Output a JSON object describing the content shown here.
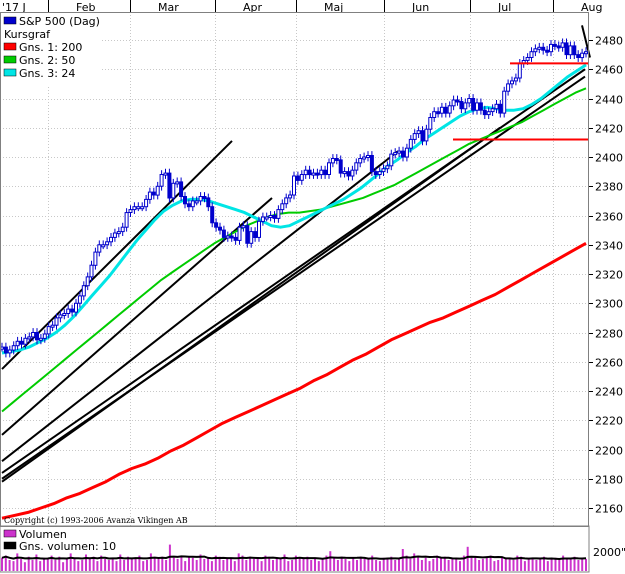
{
  "chart_data": {
    "type": "line",
    "year_label": "'17 J",
    "months": [
      "Feb",
      "Mar",
      "Apr",
      "Maj",
      "Jun",
      "Jul",
      "Aug"
    ],
    "y_ticks": [
      2160,
      2180,
      2200,
      2220,
      2240,
      2260,
      2280,
      2300,
      2320,
      2340,
      2360,
      2380,
      2400,
      2420,
      2440,
      2460,
      2480
    ],
    "ylim": [
      2150,
      2495
    ],
    "grid": true,
    "copyright": "Copyright (c) 1993-2006 Avanza Vikingen AB",
    "legend": [
      {
        "label": "S&P 500 (Dag)",
        "color": "#0000cc"
      },
      {
        "label": "Kursgraf",
        "color": null
      },
      {
        "label": "Gns. 1: 200",
        "color": "#ff0000"
      },
      {
        "label": "Gns. 2: 50",
        "color": "#00cc00"
      },
      {
        "label": "Gns. 3: 24",
        "color": "#00e5e5"
      }
    ],
    "price_close": [
      2270,
      2266,
      2268,
      2271,
      2274,
      2272,
      2276,
      2277,
      2280,
      2275,
      2276,
      2279,
      2284,
      2285,
      2290,
      2292,
      2293,
      2296,
      2294,
      2300,
      2305,
      2312,
      2318,
      2326,
      2335,
      2340,
      2340,
      2342,
      2345,
      2348,
      2349,
      2352,
      2362,
      2364,
      2366,
      2366,
      2366,
      2371,
      2376,
      2374,
      2380,
      2388,
      2389,
      2372,
      2382,
      2383,
      2373,
      2368,
      2366,
      2370,
      2370,
      2373,
      2372,
      2366,
      2355,
      2352,
      2350,
      2345,
      2346,
      2345,
      2343,
      2352,
      2353,
      2341,
      2349,
      2345,
      2356,
      2359,
      2359,
      2360,
      2358,
      2364,
      2368,
      2372,
      2374,
      2387,
      2384,
      2388,
      2391,
      2388,
      2389,
      2388,
      2391,
      2388,
      2396,
      2399,
      2398,
      2389,
      2390,
      2387,
      2391,
      2396,
      2399,
      2400,
      2401,
      2390,
      2388,
      2390,
      2392,
      2394,
      2402,
      2403,
      2404,
      2400,
      2406,
      2412,
      2416,
      2418,
      2411,
      2419,
      2427,
      2431,
      2430,
      2434,
      2430,
      2435,
      2439,
      2438,
      2433,
      2437,
      2440,
      2432,
      2437,
      2432,
      2429,
      2431,
      2433,
      2436,
      2430,
      2445,
      2450,
      2452,
      2454,
      2464,
      2466,
      2468,
      2472,
      2474,
      2475,
      2473,
      2472,
      2477,
      2476,
      2475,
      2478,
      2470,
      2476,
      2470,
      2468,
      2471,
      2472
    ],
    "ma200": [
      2153,
      2155,
      2157,
      2160,
      2163,
      2167,
      2170,
      2174,
      2178,
      2183,
      2187,
      2190,
      2194,
      2199,
      2203,
      2208,
      2213,
      2218,
      2222,
      2226,
      2230,
      2234,
      2238,
      2242,
      2247,
      2251,
      2256,
      2261,
      2265,
      2270,
      2275,
      2279,
      2283,
      2287,
      2290,
      2294,
      2298,
      2302,
      2306,
      2311,
      2316,
      2321,
      2326,
      2331,
      2336,
      2341
    ],
    "ma50": [
      2226,
      2232,
      2238,
      2244,
      2250,
      2256,
      2262,
      2268,
      2274,
      2280,
      2286,
      2292,
      2298,
      2304,
      2310,
      2316,
      2321,
      2326,
      2331,
      2336,
      2341,
      2345,
      2349,
      2353,
      2356,
      2359,
      2361,
      2362,
      2362,
      2363,
      2364,
      2366,
      2368,
      2370,
      2372,
      2375,
      2378,
      2381,
      2385,
      2389,
      2393,
      2397,
      2401,
      2405,
      2409,
      2412,
      2415,
      2418,
      2421,
      2424,
      2428,
      2432,
      2436,
      2440,
      2444,
      2447
    ],
    "ma24": [
      2266,
      2267,
      2268,
      2270,
      2273,
      2276,
      2280,
      2285,
      2291,
      2298,
      2305,
      2312,
      2319,
      2327,
      2335,
      2343,
      2350,
      2357,
      2363,
      2367,
      2370,
      2371,
      2371,
      2370,
      2368,
      2366,
      2364,
      2362,
      2359,
      2356,
      2353,
      2352,
      2353,
      2356,
      2359,
      2362,
      2365,
      2368,
      2371,
      2375,
      2379,
      2384,
      2389,
      2394,
      2398,
      2403,
      2407,
      2412,
      2416,
      2420,
      2424,
      2428,
      2431,
      2433,
      2434,
      2433,
      2432,
      2432,
      2433,
      2436,
      2440,
      2445,
      2450,
      2455,
      2459,
      2463
    ],
    "resistance_line": {
      "value": 2464,
      "color": "#ff0000"
    },
    "support_line": {
      "value": 2412,
      "color": "#ff0000"
    },
    "volume_legend": [
      {
        "label": "Volumen",
        "color": "#cc33cc"
      },
      {
        "label": "Gns. volumen: 10",
        "color": "#000000"
      }
    ],
    "volume_tick": "2000\"",
    "volume": [
      12,
      14,
      10,
      9,
      16,
      11,
      8,
      13,
      10,
      15,
      9,
      12,
      11,
      14,
      10,
      13,
      8,
      12,
      16,
      11,
      9,
      10,
      15,
      12,
      13,
      9,
      14,
      11,
      10,
      12,
      9,
      15,
      10,
      13,
      12,
      11,
      14,
      9,
      10,
      16,
      12,
      11,
      13,
      10,
      24,
      12,
      11,
      14,
      9,
      13,
      12,
      10,
      15,
      11,
      12,
      9,
      14,
      13,
      10,
      11,
      12,
      9,
      16,
      14,
      10,
      13,
      11,
      12,
      9,
      14,
      13,
      10,
      12,
      11,
      15,
      9,
      10,
      14,
      12,
      11,
      13,
      10,
      12,
      9,
      11,
      14,
      18,
      12,
      10,
      13,
      11,
      9,
      12,
      10,
      13,
      11,
      12,
      14,
      10,
      9,
      12,
      11,
      13,
      10,
      12,
      20,
      14,
      11,
      16,
      13,
      10,
      12,
      9,
      11,
      14,
      12,
      13,
      10,
      11,
      12,
      9,
      14,
      22,
      12,
      13,
      10,
      11,
      12,
      14,
      9,
      10,
      13,
      11,
      12,
      10,
      14,
      13,
      9,
      12,
      11,
      10,
      12,
      13,
      9,
      11,
      12,
      10,
      14,
      12,
      11,
      13,
      10,
      12,
      11
    ]
  }
}
